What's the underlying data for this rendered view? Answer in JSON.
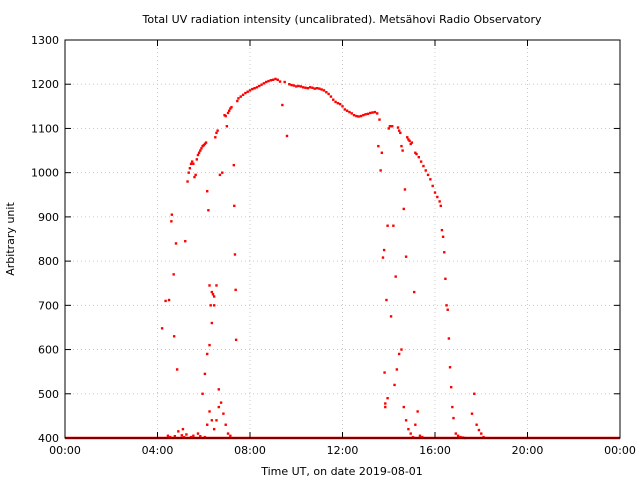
{
  "chart_data": {
    "type": "scatter",
    "title": "Total UV radiation intensity (uncalibrated). Metsähovi Radio Observatory",
    "xlabel": "Time UT, on date 2019-08-01",
    "ylabel": "Arbitrary unit",
    "xlim": [
      0,
      24
    ],
    "ylim": [
      400,
      1300
    ],
    "x_unit": "hours UT",
    "x_ticks": [
      0,
      4,
      8,
      12,
      16,
      20,
      24
    ],
    "x_tick_labels": [
      "00:00",
      "04:00",
      "08:00",
      "12:00",
      "16:00",
      "20:00",
      "00:00"
    ],
    "y_ticks": [
      400,
      500,
      600,
      700,
      800,
      900,
      1000,
      1100,
      1200,
      1300
    ],
    "y_tick_labels": [
      "400",
      "500",
      "600",
      "700",
      "800",
      "900",
      "1000",
      "1100",
      "1200",
      "1300"
    ],
    "grid": true,
    "marker_color": "#ff0000",
    "baseline": {
      "value": 400,
      "x_start": 0,
      "x_end": 24
    },
    "series": [
      {
        "points": [
          [
            4.2,
            648
          ],
          [
            4.35,
            710
          ],
          [
            4.5,
            712
          ],
          [
            4.6,
            890
          ],
          [
            4.62,
            905
          ],
          [
            4.7,
            770
          ],
          [
            4.72,
            630
          ],
          [
            4.8,
            840
          ],
          [
            4.85,
            555
          ],
          [
            4.9,
            415
          ],
          [
            5.1,
            420
          ],
          [
            5.2,
            845
          ],
          [
            5.3,
            980
          ],
          [
            5.35,
            1000
          ],
          [
            5.4,
            1010
          ],
          [
            5.45,
            1020
          ],
          [
            5.5,
            1025
          ],
          [
            5.55,
            1020
          ],
          [
            5.6,
            990
          ],
          [
            5.65,
            995
          ],
          [
            5.7,
            1030
          ],
          [
            5.75,
            1040
          ],
          [
            5.8,
            1045
          ],
          [
            5.85,
            1050
          ],
          [
            5.9,
            1055
          ],
          [
            5.95,
            1060
          ],
          [
            6.0,
            1062
          ],
          [
            6.05,
            1065
          ],
          [
            6.1,
            1068
          ],
          [
            6.15,
            958
          ],
          [
            6.2,
            915
          ],
          [
            6.25,
            745
          ],
          [
            6.3,
            700
          ],
          [
            6.35,
            730
          ],
          [
            6.4,
            725
          ],
          [
            6.45,
            700
          ],
          [
            6.5,
            1080
          ],
          [
            6.55,
            1090
          ],
          [
            6.6,
            1095
          ],
          [
            6.7,
            995
          ],
          [
            6.8,
            1000
          ],
          [
            6.9,
            1130
          ],
          [
            6.95,
            1128
          ],
          [
            7.0,
            1105
          ],
          [
            7.05,
            1135
          ],
          [
            7.1,
            1140
          ],
          [
            7.15,
            1145
          ],
          [
            7.2,
            1148
          ],
          [
            7.3,
            1017
          ],
          [
            7.32,
            925
          ],
          [
            7.35,
            815
          ],
          [
            7.38,
            735
          ],
          [
            7.4,
            622
          ],
          [
            7.45,
            1162
          ],
          [
            7.5,
            1168
          ],
          [
            7.6,
            1172
          ],
          [
            7.7,
            1176
          ],
          [
            7.8,
            1180
          ],
          [
            7.9,
            1183
          ],
          [
            8.0,
            1186
          ],
          [
            8.1,
            1189
          ],
          [
            8.2,
            1191
          ],
          [
            8.3,
            1193
          ],
          [
            8.4,
            1196
          ],
          [
            8.5,
            1199
          ],
          [
            8.6,
            1202
          ],
          [
            8.7,
            1205
          ],
          [
            8.8,
            1207
          ],
          [
            8.9,
            1209
          ],
          [
            9.0,
            1210
          ],
          [
            9.1,
            1212
          ],
          [
            9.2,
            1210
          ],
          [
            9.3,
            1206
          ],
          [
            9.4,
            1153
          ],
          [
            9.5,
            1205
          ],
          [
            9.6,
            1083
          ],
          [
            9.7,
            1200
          ],
          [
            9.8,
            1198
          ],
          [
            9.9,
            1197
          ],
          [
            10.0,
            1195
          ],
          [
            10.1,
            1196
          ],
          [
            10.2,
            1195
          ],
          [
            10.3,
            1193
          ],
          [
            10.4,
            1192
          ],
          [
            10.5,
            1191
          ],
          [
            10.6,
            1193
          ],
          [
            10.7,
            1192
          ],
          [
            10.8,
            1190
          ],
          [
            10.9,
            1191
          ],
          [
            11.0,
            1190
          ],
          [
            11.1,
            1188
          ],
          [
            11.2,
            1186
          ],
          [
            11.3,
            1182
          ],
          [
            11.4,
            1178
          ],
          [
            11.5,
            1172
          ],
          [
            11.6,
            1165
          ],
          [
            11.7,
            1160
          ],
          [
            11.8,
            1157
          ],
          [
            11.9,
            1155
          ],
          [
            12.0,
            1150
          ],
          [
            12.1,
            1143
          ],
          [
            12.2,
            1140
          ],
          [
            12.3,
            1137
          ],
          [
            12.4,
            1134
          ],
          [
            12.5,
            1130
          ],
          [
            12.6,
            1128
          ],
          [
            12.7,
            1127
          ],
          [
            12.8,
            1128
          ],
          [
            12.9,
            1130
          ],
          [
            13.0,
            1132
          ],
          [
            13.1,
            1133
          ],
          [
            13.2,
            1135
          ],
          [
            13.3,
            1136
          ],
          [
            13.4,
            1137
          ],
          [
            13.5,
            1134
          ],
          [
            13.55,
            1060
          ],
          [
            13.6,
            1120
          ],
          [
            13.65,
            1005
          ],
          [
            13.7,
            1045
          ],
          [
            13.75,
            808
          ],
          [
            13.8,
            825
          ],
          [
            13.82,
            548
          ],
          [
            13.85,
            478
          ],
          [
            13.9,
            712
          ],
          [
            13.95,
            880
          ],
          [
            14.0,
            1100
          ],
          [
            14.05,
            1105
          ],
          [
            14.1,
            675
          ],
          [
            14.15,
            1105
          ],
          [
            14.2,
            880
          ],
          [
            14.3,
            765
          ],
          [
            14.4,
            1102
          ],
          [
            14.45,
            1095
          ],
          [
            14.5,
            1090
          ],
          [
            14.55,
            1060
          ],
          [
            14.6,
            1050
          ],
          [
            14.65,
            918
          ],
          [
            14.7,
            962
          ],
          [
            14.75,
            810
          ],
          [
            14.8,
            1080
          ],
          [
            14.85,
            1075
          ],
          [
            14.9,
            1072
          ],
          [
            14.95,
            1065
          ],
          [
            15.0,
            1068
          ],
          [
            15.1,
            730
          ],
          [
            15.15,
            1045
          ],
          [
            15.2,
            1042
          ],
          [
            15.3,
            1035
          ],
          [
            15.4,
            1025
          ],
          [
            15.5,
            1015
          ],
          [
            15.6,
            1005
          ],
          [
            15.7,
            995
          ],
          [
            15.8,
            985
          ],
          [
            15.9,
            970
          ],
          [
            16.0,
            955
          ],
          [
            16.1,
            945
          ],
          [
            16.2,
            935
          ],
          [
            16.25,
            925
          ],
          [
            16.3,
            870
          ],
          [
            16.35,
            855
          ],
          [
            16.4,
            820
          ],
          [
            16.45,
            760
          ],
          [
            16.5,
            700
          ],
          [
            16.55,
            690
          ],
          [
            16.6,
            625
          ],
          [
            16.65,
            560
          ],
          [
            16.7,
            515
          ],
          [
            16.75,
            470
          ],
          [
            16.8,
            445
          ],
          [
            16.9,
            410
          ],
          [
            17.0,
            405
          ],
          [
            17.1,
            402
          ],
          [
            17.2,
            401
          ],
          [
            17.3,
            400
          ],
          [
            17.6,
            455
          ],
          [
            17.7,
            500
          ],
          [
            17.8,
            430
          ],
          [
            17.9,
            418
          ],
          [
            18.0,
            410
          ],
          [
            18.1,
            402
          ],
          [
            4.45,
            405
          ],
          [
            4.55,
            402
          ],
          [
            4.75,
            404
          ],
          [
            5.05,
            406
          ],
          [
            5.15,
            402
          ],
          [
            5.25,
            408
          ],
          [
            5.45,
            402
          ],
          [
            5.55,
            405
          ],
          [
            5.75,
            410
          ],
          [
            5.85,
            404
          ],
          [
            6.05,
            402
          ],
          [
            6.15,
            430
          ],
          [
            6.25,
            460
          ],
          [
            6.35,
            440
          ],
          [
            6.45,
            420
          ],
          [
            6.55,
            440
          ],
          [
            6.65,
            470
          ],
          [
            6.75,
            480
          ],
          [
            6.85,
            455
          ],
          [
            6.95,
            430
          ],
          [
            7.05,
            410
          ],
          [
            7.15,
            405
          ],
          [
            5.95,
            500
          ],
          [
            6.05,
            545
          ],
          [
            6.15,
            590
          ],
          [
            6.25,
            610
          ],
          [
            6.35,
            660
          ],
          [
            6.45,
            720
          ],
          [
            6.55,
            745
          ],
          [
            6.65,
            510
          ],
          [
            13.85,
            470
          ],
          [
            13.95,
            490
          ],
          [
            14.25,
            520
          ],
          [
            14.35,
            555
          ],
          [
            14.45,
            590
          ],
          [
            14.55,
            600
          ],
          [
            14.65,
            470
          ],
          [
            14.75,
            440
          ],
          [
            14.85,
            420
          ],
          [
            14.95,
            410
          ],
          [
            15.05,
            402
          ],
          [
            15.15,
            430
          ],
          [
            15.25,
            460
          ],
          [
            15.35,
            405
          ],
          [
            15.45,
            402
          ]
        ]
      }
    ]
  }
}
